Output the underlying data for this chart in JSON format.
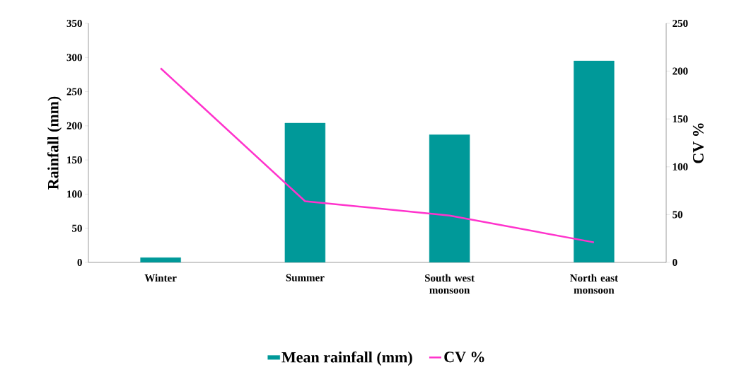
{
  "chart_data": {
    "type": "bar",
    "categories": [
      "Winter",
      "Summer",
      "South west monsoon",
      "North east monsoon"
    ],
    "series": [
      {
        "name": "Mean rainfall (mm)",
        "color": "#009999",
        "values": [
          7,
          204,
          187,
          295
        ]
      },
      {
        "name": "CV %",
        "type": "line",
        "axis": "y2",
        "color": "#ff33cc",
        "values": [
          203,
          64,
          49,
          21
        ]
      }
    ],
    "ylabel": "Rainfall (mm)",
    "y2label": "CV %",
    "ylim": [
      0,
      350
    ],
    "yticks": [
      0,
      50,
      100,
      150,
      200,
      250,
      300,
      350
    ],
    "y2lim": [
      0,
      250
    ],
    "y2ticks": [
      0,
      50,
      100,
      150,
      200,
      250
    ],
    "legend": "bottom",
    "marker": "none"
  }
}
